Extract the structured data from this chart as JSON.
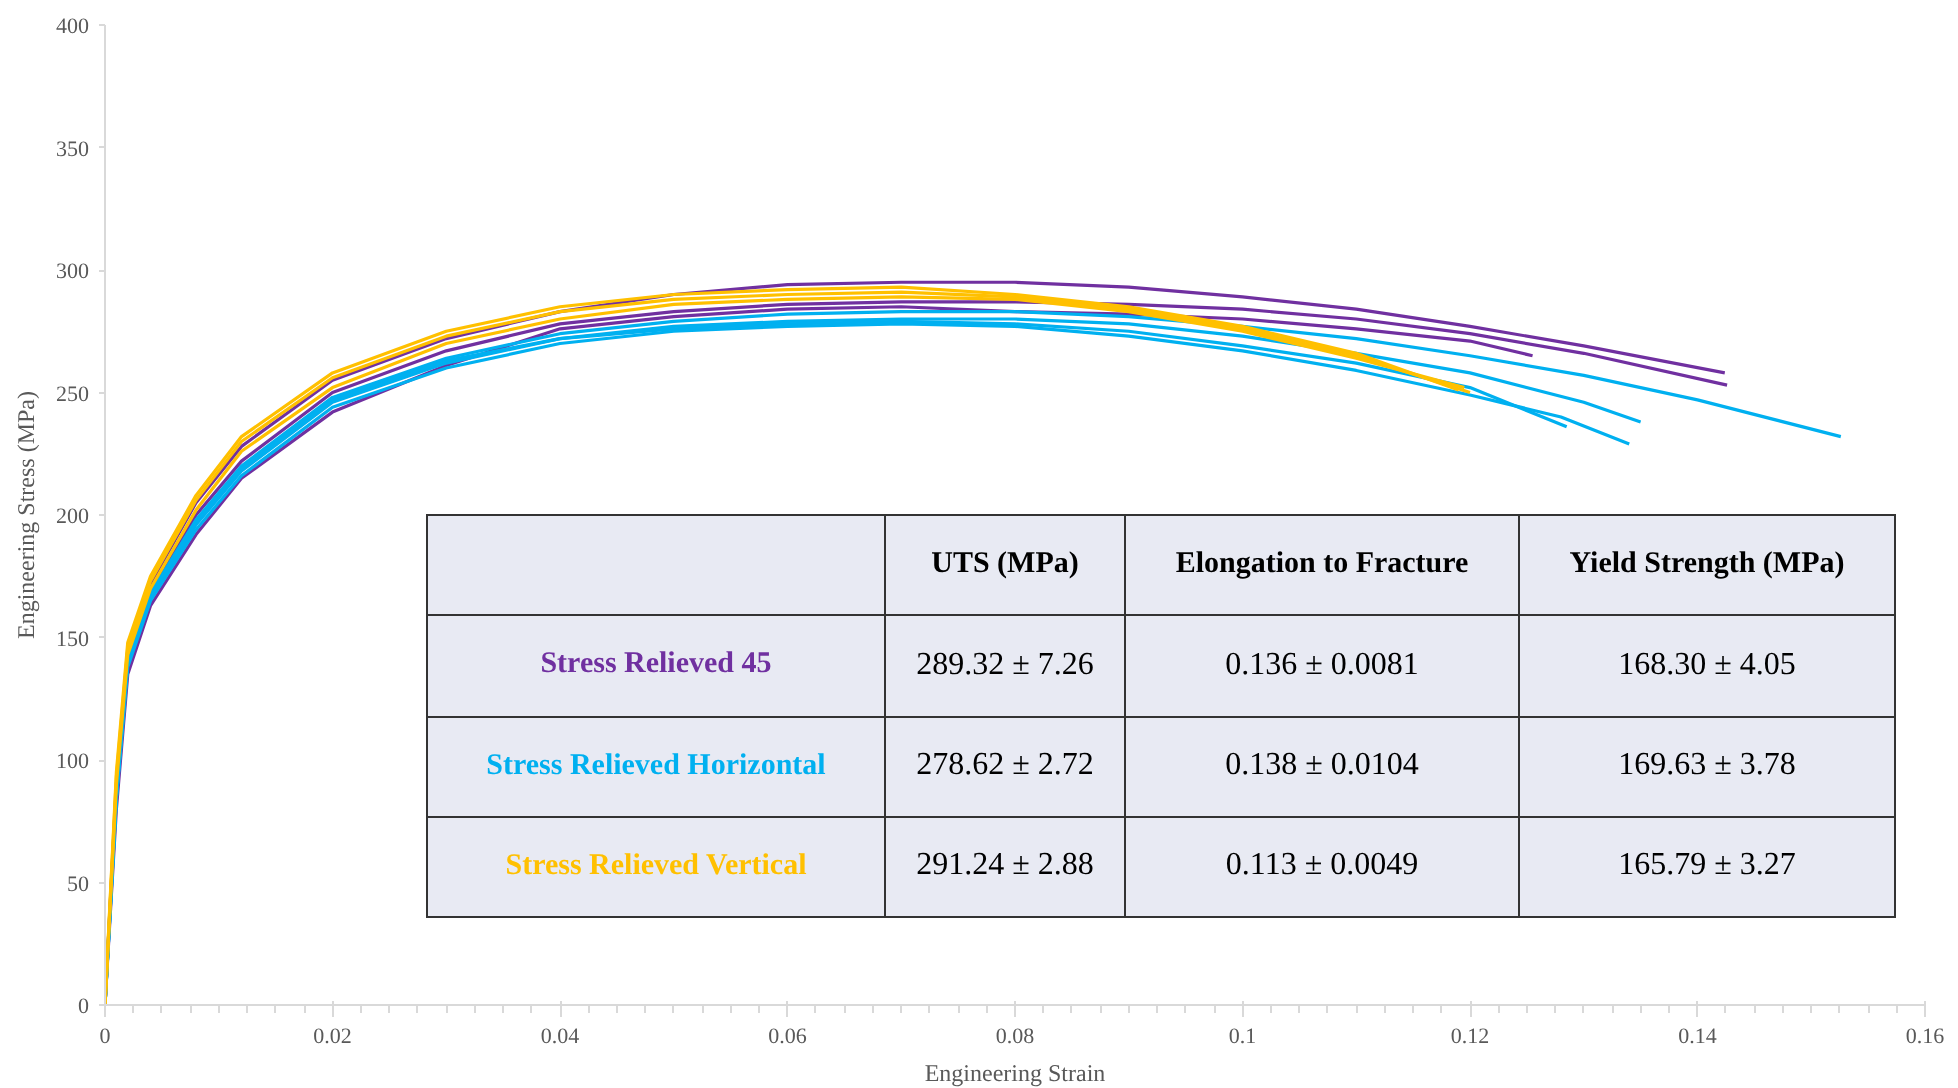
{
  "chart_data": {
    "type": "line",
    "xlabel": "Engineering Strain",
    "ylabel": "Engineering Stress (MPa)",
    "xlim": [
      0,
      0.16
    ],
    "ylim": [
      0,
      400
    ],
    "xticks": [
      0,
      0.02,
      0.04,
      0.06,
      0.08,
      0.1,
      0.12,
      0.14,
      0.16
    ],
    "yticks": [
      0,
      50,
      100,
      150,
      200,
      250,
      300,
      350,
      400
    ],
    "grid": false,
    "legend": false,
    "marker": "none",
    "line_style": "solid",
    "series": [
      {
        "name": "Stress Relieved 45",
        "color": "#7030a0",
        "x": [
          0,
          0.001,
          0.002,
          0.004,
          0.008,
          0.012,
          0.02,
          0.03,
          0.04,
          0.05,
          0.06,
          0.07,
          0.08,
          0.09,
          0.1,
          0.11,
          0.12,
          0.13,
          0.1424
        ],
        "values": [
          0,
          90,
          145,
          172,
          205,
          228,
          255,
          272,
          283,
          290,
          294,
          295,
          295,
          293,
          289,
          284,
          277,
          269,
          258
        ]
      },
      {
        "color": "#7030a0",
        "x": [
          0,
          0.001,
          0.002,
          0.004,
          0.008,
          0.012,
          0.02,
          0.03,
          0.04,
          0.05,
          0.06,
          0.07,
          0.08,
          0.09,
          0.1,
          0.11,
          0.12,
          0.13,
          0.1426
        ],
        "values": [
          0,
          88,
          142,
          168,
          200,
          222,
          250,
          267,
          278,
          283,
          286,
          287,
          287,
          286,
          284,
          280,
          274,
          266,
          253
        ]
      },
      {
        "color": "#7030a0",
        "x": [
          0,
          0.001,
          0.002,
          0.004,
          0.008,
          0.012,
          0.02,
          0.03,
          0.04,
          0.05,
          0.06,
          0.07,
          0.08,
          0.09,
          0.1,
          0.11,
          0.12,
          0.1255
        ],
        "values": [
          0,
          80,
          135,
          163,
          192,
          215,
          242,
          261,
          276,
          281,
          284,
          285,
          283,
          282,
          280,
          276,
          271,
          265
        ]
      },
      {
        "name": "Stress Relieved Horizontal",
        "color": "#00b0f0",
        "x": [
          0,
          0.001,
          0.002,
          0.004,
          0.008,
          0.012,
          0.02,
          0.03,
          0.04,
          0.05,
          0.06,
          0.07,
          0.08,
          0.09,
          0.1,
          0.11,
          0.12,
          0.13,
          0.14,
          0.1526
        ],
        "values": [
          0,
          85,
          140,
          168,
          198,
          220,
          248,
          264,
          274,
          279,
          282,
          283,
          283,
          281,
          277,
          272,
          265,
          257,
          247,
          232
        ]
      },
      {
        "color": "#00b0f0",
        "x": [
          0,
          0.001,
          0.002,
          0.004,
          0.008,
          0.012,
          0.02,
          0.03,
          0.04,
          0.05,
          0.06,
          0.07,
          0.08,
          0.09,
          0.1,
          0.11,
          0.12,
          0.13,
          0.135
        ],
        "values": [
          0,
          85,
          140,
          166,
          196,
          218,
          246,
          262,
          272,
          277,
          279,
          280,
          280,
          278,
          273,
          266,
          258,
          246,
          238
        ]
      },
      {
        "color": "#00b0f0",
        "x": [
          0,
          0.001,
          0.002,
          0.004,
          0.008,
          0.012,
          0.02,
          0.03,
          0.04,
          0.05,
          0.06,
          0.07,
          0.08,
          0.09,
          0.1,
          0.11,
          0.12,
          0.128,
          0.134
        ],
        "values": [
          0,
          84,
          138,
          165,
          194,
          216,
          244,
          260,
          270,
          275,
          277,
          278,
          277,
          273,
          267,
          259,
          249,
          240,
          229
        ]
      },
      {
        "color": "#00b0f0",
        "x": [
          0,
          0.001,
          0.002,
          0.004,
          0.008,
          0.012,
          0.02,
          0.03,
          0.04,
          0.05,
          0.06,
          0.07,
          0.08,
          0.09,
          0.1,
          0.11,
          0.12,
          0.1285
        ],
        "values": [
          0,
          86,
          141,
          167,
          197,
          219,
          247,
          263,
          272,
          276,
          278,
          279,
          278,
          275,
          269,
          262,
          252,
          236
        ]
      },
      {
        "name": "Stress Relieved Vertical",
        "color": "#ffc000",
        "x": [
          0,
          0.001,
          0.002,
          0.004,
          0.008,
          0.012,
          0.02,
          0.03,
          0.04,
          0.05,
          0.06,
          0.07,
          0.08,
          0.09,
          0.1,
          0.11,
          0.119
        ],
        "values": [
          0,
          95,
          148,
          175,
          208,
          232,
          258,
          275,
          285,
          290,
          292,
          293,
          290,
          285,
          277,
          266,
          251
        ]
      },
      {
        "color": "#ffc000",
        "x": [
          0,
          0.001,
          0.002,
          0.004,
          0.008,
          0.012,
          0.02,
          0.03,
          0.04,
          0.05,
          0.06,
          0.07,
          0.08,
          0.09,
          0.1,
          0.11,
          0.12
        ],
        "values": [
          0,
          93,
          146,
          173,
          206,
          230,
          256,
          273,
          283,
          288,
          290,
          291,
          289,
          284,
          276,
          265,
          250
        ]
      },
      {
        "color": "#ffc000",
        "x": [
          0,
          0.001,
          0.002,
          0.004,
          0.008,
          0.012,
          0.02,
          0.03,
          0.04,
          0.05,
          0.06,
          0.07,
          0.08,
          0.09,
          0.1,
          0.11,
          0.1195
        ],
        "values": [
          0,
          90,
          143,
          170,
          202,
          226,
          252,
          270,
          280,
          286,
          288,
          289,
          288,
          283,
          275,
          264,
          252
        ]
      }
    ],
    "annotations": [
      "UTS (MPa)",
      "Elongation to Fracture",
      "Yield Strength (MPa)",
      "289.32 ± 7.26",
      "0.136 ± 0.0081",
      "168.30 ± 4.05",
      "278.62 ± 2.72",
      "0.138 ± 0.0104",
      "169.63 ± 3.78",
      "291.24 ± 2.88",
      "0.113 ± 0.0049",
      "165.79 ± 3.27"
    ]
  }
}
